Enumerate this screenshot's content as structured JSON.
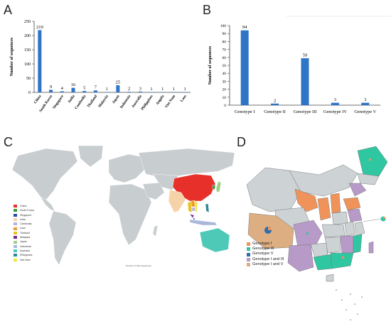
{
  "panels": {
    "a": "A",
    "b": "B",
    "c": "C",
    "d": "D"
  },
  "colors": {
    "bar": "#2e75c8",
    "axis": "#444444",
    "land": "#c8cdd0",
    "ocean": "#ffffff"
  },
  "chart_data": [
    {
      "type": "bar",
      "ylabel": "Number of sequences",
      "xlabel": "",
      "ylim": [
        0,
        250
      ],
      "yticks": [
        0,
        50,
        100,
        150,
        200,
        250
      ],
      "categories": [
        "China",
        "South Korea",
        "Singapore",
        "India",
        "Cambodia",
        "Thailand",
        "Malaysia",
        "Japan",
        "Indonesia",
        "Australia",
        "Philippines",
        "Angola",
        "Viet Nam",
        "Laos"
      ],
      "values": [
        219,
        9,
        4,
        16,
        5,
        7,
        1,
        25,
        2,
        3,
        1,
        1,
        1,
        1
      ],
      "value_labels": [
        "219",
        "9",
        "4",
        "16",
        "5",
        "7",
        "1",
        "25",
        "2",
        "3",
        "1",
        "1",
        "1",
        "1"
      ]
    },
    {
      "type": "bar",
      "ylabel": "Number of sequences",
      "xlabel": "",
      "ylim": [
        0,
        100
      ],
      "yticks": [
        0,
        10,
        20,
        30,
        40,
        50,
        60,
        70,
        80,
        90,
        100
      ],
      "categories": [
        "Genotype I",
        "Genotype II",
        "Genotype III",
        "Genotype IV",
        "Genotype V"
      ],
      "values": [
        94,
        2,
        59,
        3,
        3
      ],
      "value_labels": [
        "94",
        "2",
        "59",
        "3",
        "3"
      ]
    }
  ],
  "map_c": {
    "legend": [
      {
        "label": "China",
        "color": "#e8302a"
      },
      {
        "label": "South Korea",
        "color": "#3a9a3a"
      },
      {
        "label": "Singapore",
        "color": "#2a4aa8"
      },
      {
        "label": "India",
        "color": "#f6d2a8"
      },
      {
        "label": "Cambodia",
        "color": "#b9b2d8"
      },
      {
        "label": "Laos",
        "color": "#ee9a2e"
      },
      {
        "label": "Thailand",
        "color": "#e8c22a"
      },
      {
        "label": "Malaysia",
        "color": "#7a2a8a"
      },
      {
        "label": "Japan",
        "color": "#9fd08a"
      },
      {
        "label": "Indonesia",
        "color": "#a9b8d8"
      },
      {
        "label": "Australia",
        "color": "#4ec9b8"
      },
      {
        "label": "Philippines",
        "color": "#2e8a9a"
      },
      {
        "label": "Viet Nam",
        "color": "#ede84a"
      }
    ],
    "note": "Number of JEV sequences"
  },
  "map_d": {
    "legend": [
      {
        "label": "Genotype I",
        "color": "#f0935a"
      },
      {
        "label": "Genotype III",
        "color": "#2fc7a2"
      },
      {
        "label": "Genotype V",
        "color": "#2e6db0"
      },
      {
        "label": "Genotype I and III",
        "color": "#b79ac8"
      },
      {
        "label": "Genotype I and V",
        "color": "#dcae82"
      }
    ]
  }
}
